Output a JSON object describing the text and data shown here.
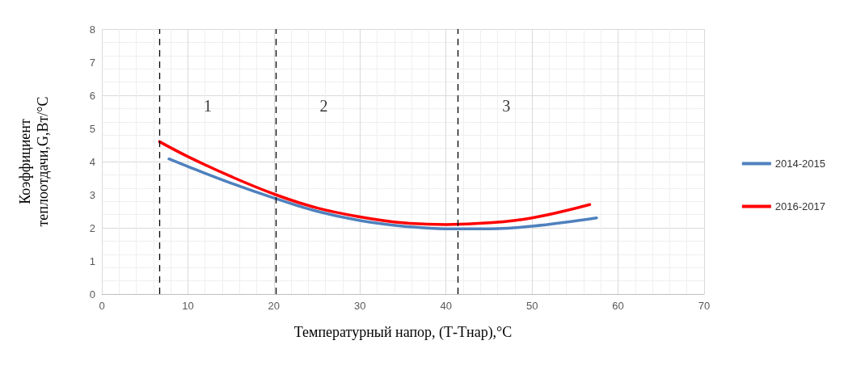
{
  "chart_data": {
    "type": "line",
    "xlabel": "Температурный напор, (Т-Тнар),°С",
    "ylabel": "Коэффициент\nтеплоотдачи,G,Вт/°С",
    "xlim": [
      0,
      70
    ],
    "xticks": [
      0,
      10,
      20,
      30,
      40,
      50,
      60,
      70
    ],
    "ylim": [
      0,
      8
    ],
    "yticks": [
      0,
      1,
      2,
      3,
      4,
      5,
      6,
      7,
      8
    ],
    "grid": true,
    "legend": "right",
    "marker": "none",
    "line_style": "solid",
    "series": [
      {
        "name": "2014-2015",
        "color": "#4f81bd",
        "x": [
          7.8,
          10,
          15,
          20,
          25,
          30,
          35,
          40,
          45,
          50,
          57.5
        ],
        "values": [
          4.08,
          3.85,
          3.35,
          2.9,
          2.5,
          2.22,
          2.05,
          1.97,
          1.97,
          2.05,
          2.3
        ]
      },
      {
        "name": "2016-2017",
        "color": "#ff0000",
        "x": [
          6.7,
          10,
          15,
          20.2,
          25,
          30,
          35,
          40,
          45,
          50,
          56.7
        ],
        "values": [
          4.6,
          4.15,
          3.55,
          3.0,
          2.6,
          2.33,
          2.15,
          2.1,
          2.15,
          2.3,
          2.7
        ]
      }
    ],
    "ref_lines": [
      {
        "axis": "x",
        "value": 6.7,
        "color": "#000000",
        "line_style": "dashed"
      },
      {
        "axis": "x",
        "value": 20.2,
        "color": "#000000",
        "line_style": "dashed"
      },
      {
        "axis": "x",
        "value": 41.4,
        "color": "#000000",
        "line_style": "dashed"
      }
    ],
    "annotations": [
      "1",
      "2",
      "3"
    ]
  }
}
